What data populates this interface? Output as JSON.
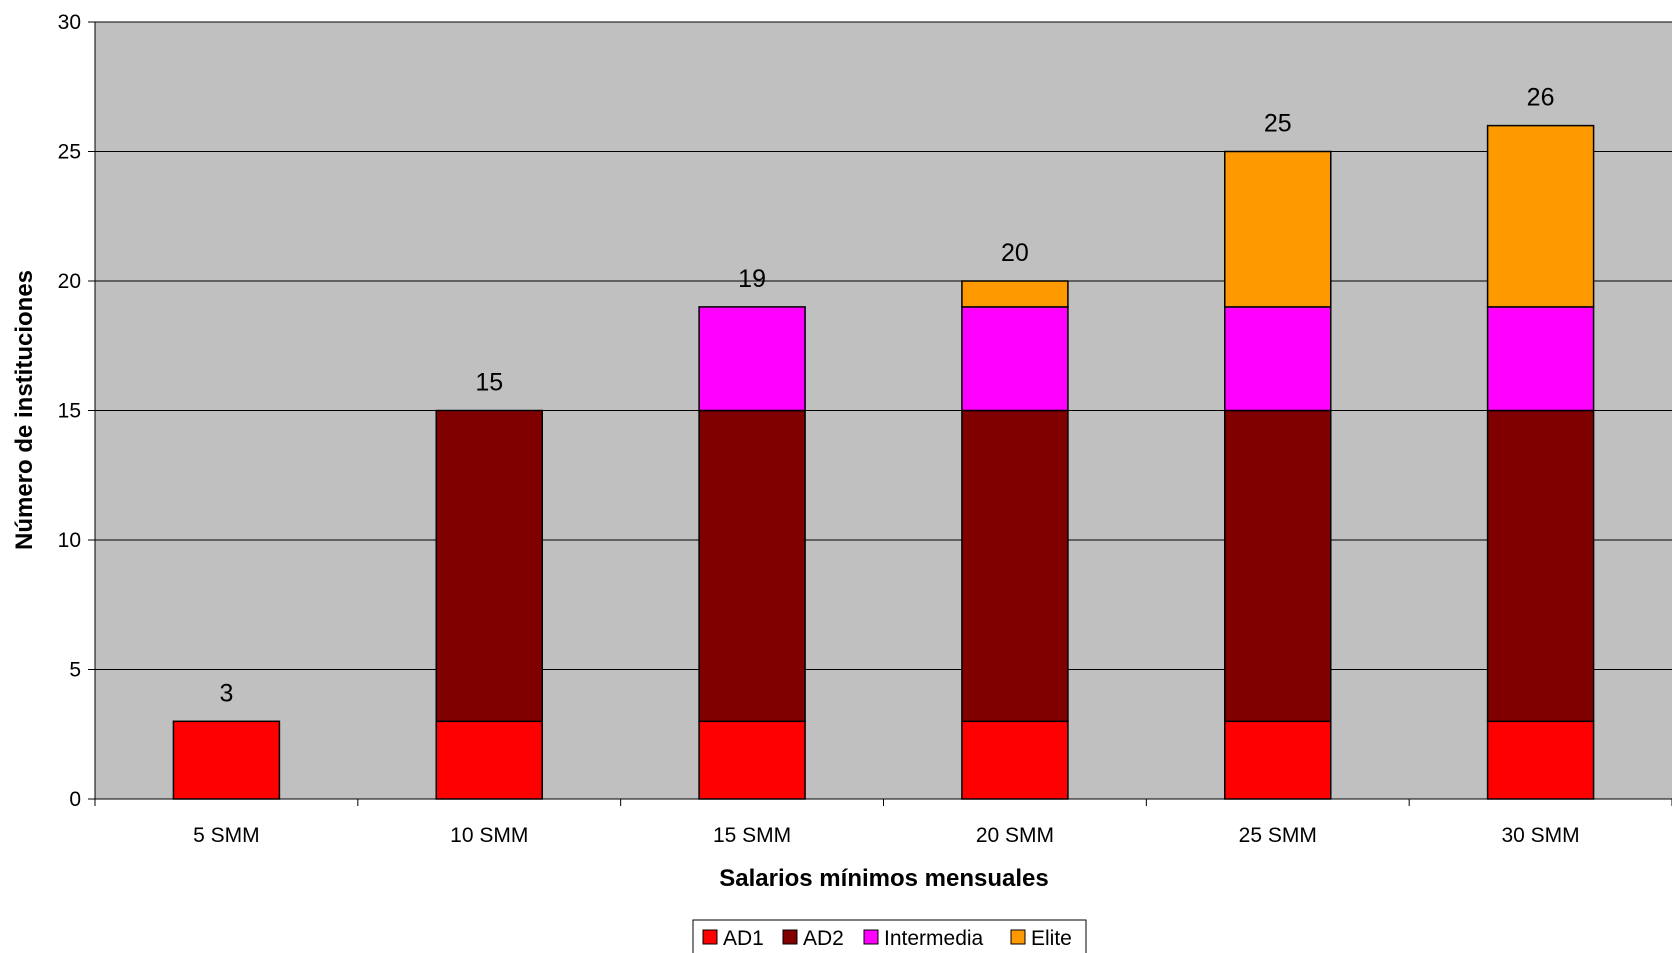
{
  "chart_data": {
    "type": "bar",
    "stacked": true,
    "categories": [
      "5 SMM",
      "10 SMM",
      "15 SMM",
      "20 SMM",
      "25 SMM",
      "30 SMM"
    ],
    "series": [
      {
        "name": "AD1",
        "color": "#ff0000",
        "values": [
          3,
          3,
          3,
          3,
          3,
          3
        ]
      },
      {
        "name": "AD2",
        "color": "#800000",
        "values": [
          0,
          12,
          12,
          12,
          12,
          12
        ]
      },
      {
        "name": "Intermedia",
        "color": "#ff00ff",
        "values": [
          0,
          0,
          4,
          4,
          4,
          4
        ]
      },
      {
        "name": "Elite",
        "color": "#ff9900",
        "values": [
          0,
          0,
          0,
          1,
          6,
          7
        ]
      }
    ],
    "totals": [
      3,
      15,
      19,
      20,
      25,
      26
    ],
    "total_labels": [
      "3",
      "15",
      "19",
      "20",
      "25",
      "26"
    ],
    "title": "",
    "xlabel": "Salarios mínimos mensuales",
    "ylabel": "Número de instituciones",
    "ylim": [
      0,
      30
    ],
    "yticks": [
      0,
      5,
      10,
      15,
      20,
      25,
      30
    ],
    "ytick_labels": [
      "0",
      "5",
      "10",
      "15",
      "20",
      "25",
      "30"
    ],
    "grid": true,
    "plot_background": "#c0c0c0",
    "legend_position": "bottom"
  }
}
